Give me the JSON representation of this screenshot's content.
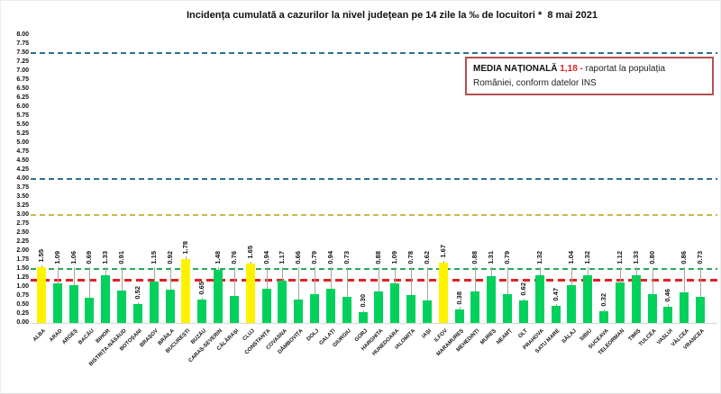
{
  "title": "Incidența cumulată a cazurilor la nivel județean pe 14 zile la ‰ de locuitori *  8 mai 2021",
  "media_box": {
    "label": "MEDIA NAȚIONALĂ",
    "value": "1,18 -",
    "text": "raportat la populația României, conform datelor INS"
  },
  "chart_data": {
    "type": "bar",
    "title": "Incidența cumulată a cazurilor la nivel județean pe 14 zile la ‰ de locuitori * 8 mai 2021",
    "xlabel": "",
    "ylabel": "",
    "ylim": [
      0,
      8
    ],
    "ytick_step": 0.25,
    "grid": false,
    "legend": false,
    "y_ticks": [
      "8.00",
      "7.75",
      "7.50",
      "7.25",
      "7.00",
      "6.75",
      "6.50",
      "6.25",
      "6.00",
      "5.75",
      "5.50",
      "5.25",
      "5.00",
      "4.75",
      "4.50",
      "4.25",
      "4.00",
      "3.75",
      "3.50",
      "3.25",
      "3.00",
      "2.75",
      "2.50",
      "2.25",
      "2.00",
      "1.75",
      "1.50",
      "1.25",
      "1.00",
      "0.75",
      "0.50",
      "0.25",
      "0.00"
    ],
    "categories": [
      "ALBA",
      "ARAD",
      "ARGEȘ",
      "BACĂU",
      "BIHOR",
      "BISTRIȚA-NĂSĂUD",
      "BOTOȘANI",
      "BRAȘOV",
      "BRĂILA",
      "BUCUREȘTI",
      "BUZĂU",
      "CARAȘ-SEVERIN",
      "CĂLĂRAȘI",
      "CLUJ",
      "CONSTANȚA",
      "COVASNA",
      "DÂMBOVIȚA",
      "DOLJ",
      "GALAȚI",
      "GIURGIU",
      "GORJ",
      "HARGHITA",
      "HUNEDOARA",
      "IALOMIȚA",
      "IAȘI",
      "ILFOV",
      "MARAMUREȘ",
      "MEHEDINȚI",
      "MUREȘ",
      "NEAMȚ",
      "OLT",
      "PRAHOVA",
      "SATU MARE",
      "SĂLAJ",
      "SIBIU",
      "SUCEAVA",
      "TELEORMAN",
      "TIMIȘ",
      "TULCEA",
      "VASLUI",
      "VÂLCEA",
      "VRANCEA"
    ],
    "values": [
      1.55,
      1.09,
      1.06,
      0.69,
      1.33,
      0.91,
      0.52,
      1.15,
      0.92,
      1.78,
      0.65,
      1.48,
      0.76,
      1.65,
      0.94,
      1.17,
      0.66,
      0.79,
      0.94,
      0.73,
      0.3,
      0.88,
      1.09,
      0.78,
      0.62,
      1.67,
      0.38,
      0.88,
      1.31,
      0.79,
      0.62,
      1.32,
      0.47,
      1.04,
      1.32,
      0.32,
      1.12,
      1.33,
      0.8,
      0.46,
      0.86,
      0.73
    ],
    "bar_color_keys": [
      "yellow",
      "green",
      "green",
      "green",
      "green",
      "green",
      "green",
      "green",
      "green",
      "yellow",
      "green",
      "green",
      "green",
      "yellow",
      "green",
      "green",
      "green",
      "green",
      "green",
      "green",
      "green",
      "green",
      "green",
      "green",
      "green",
      "yellow",
      "green",
      "green",
      "green",
      "green",
      "green",
      "green",
      "green",
      "green",
      "green",
      "green",
      "green",
      "green",
      "green",
      "green",
      "green",
      "green"
    ],
    "bar_colors_hex": {
      "green": "#00d15c",
      "yellow": "#fff200"
    },
    "low_label_indices": [
      6,
      10,
      20,
      26,
      30,
      32,
      35,
      39
    ],
    "value_label_color": "#111111",
    "leader_line_color": "#a6a6a6",
    "reference_lines": [
      {
        "value": 7.5,
        "color": "#2d7295",
        "style": "dashed",
        "name": "threshold-7-50"
      },
      {
        "value": 4.0,
        "color": "#2d7295",
        "style": "dashed",
        "name": "threshold-4-00"
      },
      {
        "value": 3.0,
        "color": "#c9b84c",
        "style": "dashed",
        "name": "threshold-3-00"
      },
      {
        "value": 1.5,
        "color": "#27a85b",
        "style": "dashed",
        "name": "threshold-1-50"
      },
      {
        "value": 1.18,
        "color": "#e02222",
        "style": "dashed",
        "name": "national-average-1-18"
      }
    ]
  }
}
